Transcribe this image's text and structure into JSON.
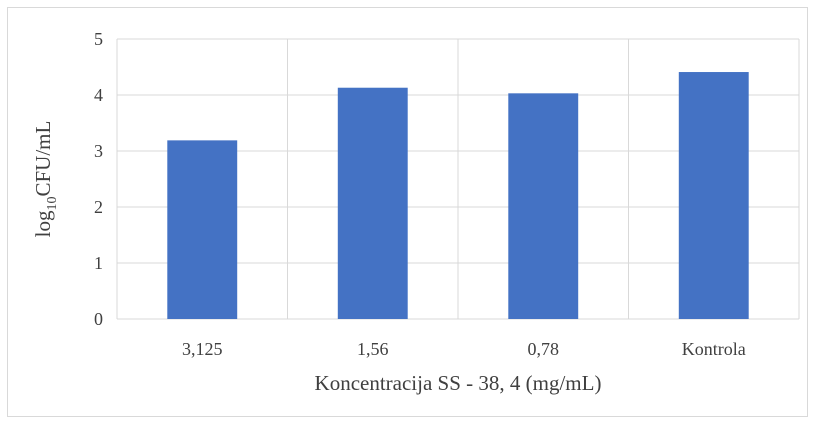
{
  "chart_data": {
    "type": "bar",
    "categories": [
      "3,125",
      "1,56",
      "0,78",
      "Kontrola"
    ],
    "values": [
      3.19,
      4.13,
      4.03,
      4.41
    ],
    "xlabel": "Koncentracija SS - 38, 4 (mg/mL)",
    "ylabel": {
      "prefix": "log",
      "subscript": "10",
      "suffix": "CFU/mL"
    },
    "ylim": [
      0,
      5
    ],
    "yticks": [
      "0",
      "1",
      "2",
      "3",
      "4",
      "5"
    ],
    "grid": true,
    "legend": "none",
    "colors": {
      "bar": "#4472C4",
      "grid": "#d9d9d9",
      "text": "#404040"
    }
  }
}
